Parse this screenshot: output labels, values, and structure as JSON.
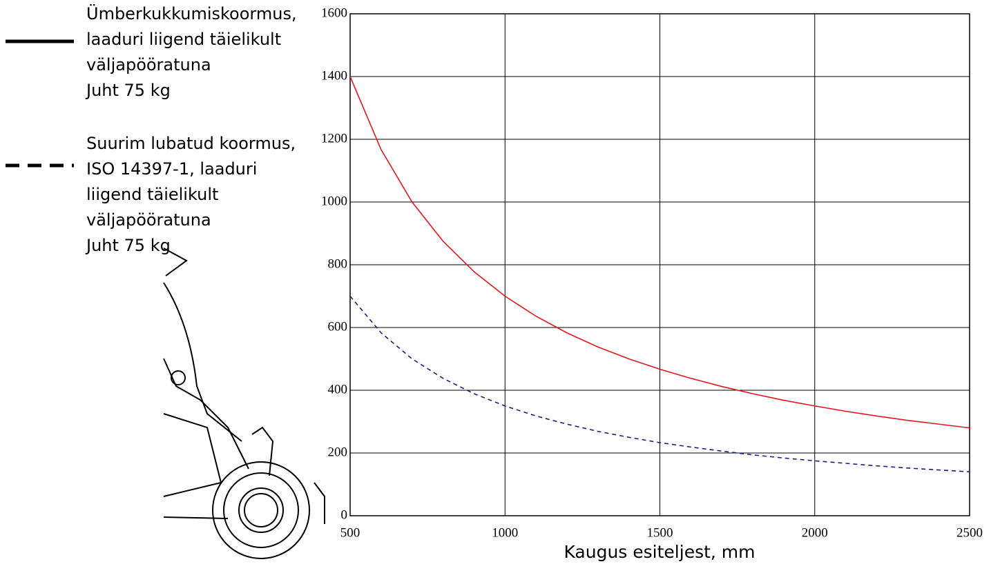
{
  "chart_data": {
    "type": "line",
    "x_label": "Kaugus esiteljest, mm",
    "x": [
      500,
      600,
      700,
      800,
      900,
      1000,
      1100,
      1200,
      1300,
      1400,
      1500,
      1600,
      1700,
      1800,
      1900,
      2000,
      2100,
      2200,
      2300,
      2400,
      2500
    ],
    "series": [
      {
        "name": "Ümberkukkumiskoormus,\nlaaduri liigend täielikult\nväljapööratuna\nJuht 75 kg",
        "color": "#e8141c",
        "dash": false,
        "values": [
          1400,
          1167,
          1000,
          875,
          778,
          700,
          636,
          583,
          538,
          500,
          467,
          438,
          412,
          389,
          368,
          350,
          333,
          318,
          304,
          292,
          280
        ]
      },
      {
        "name": "Suurim lubatud koormus,\nISO 14397-1, laaduri\nliigend täielikult\nväljapööratuna\nJuht 75 kg",
        "color": "#1a1a80",
        "dash": true,
        "values": [
          700,
          583,
          500,
          438,
          389,
          350,
          318,
          292,
          269,
          250,
          233,
          219,
          206,
          194,
          184,
          175,
          167,
          159,
          152,
          146,
          140
        ]
      }
    ],
    "xlim": [
      500,
      2500
    ],
    "ylim": [
      0,
      1600
    ],
    "xticks": [
      500,
      1000,
      1500,
      2000,
      2500
    ],
    "yticks": [
      0,
      200,
      400,
      600,
      800,
      1000,
      1200,
      1400,
      1600
    ],
    "grid": true
  }
}
